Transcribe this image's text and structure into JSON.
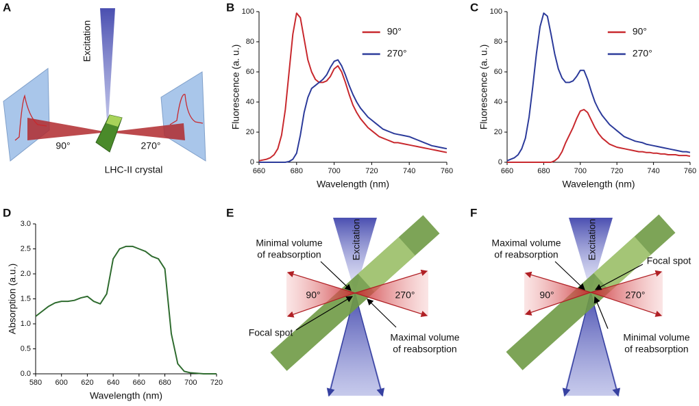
{
  "panel_labels": [
    "A",
    "B",
    "C",
    "D",
    "E",
    "F"
  ],
  "diagrams": {
    "A": {
      "excitation": "Excitation",
      "left": "90°",
      "right": "270°",
      "crystal": "LHC-II crystal"
    },
    "E": {
      "upper_left": [
        "Minimal volume",
        "of reabsorption"
      ],
      "excitation": "Excitation",
      "left": "90°",
      "right": "270°",
      "lower_left": "Focal spot",
      "lower_right": [
        "Maximal volume",
        "of reabsorption"
      ]
    },
    "F": {
      "upper_left": [
        "Maximal volume",
        "of reabsorption"
      ],
      "excitation": "Excitation",
      "upper_right": "Focal spot",
      "left": "90°",
      "right": "270°",
      "lower_right": [
        "Minimal volume",
        "of reabsorption"
      ]
    }
  },
  "chart_data": [
    {
      "type": "line",
      "xlabel": "Wavelength (nm)",
      "ylabel": "Fluorescence (a. u.)",
      "x": [
        660,
        662,
        664,
        666,
        668,
        670,
        672,
        674,
        676,
        678,
        680,
        682,
        684,
        686,
        688,
        690,
        692,
        694,
        696,
        698,
        700,
        702,
        704,
        706,
        708,
        710,
        712,
        714,
        716,
        718,
        720,
        722,
        724,
        726,
        728,
        730,
        732,
        734,
        736,
        738,
        740,
        742,
        744,
        746,
        748,
        750,
        752,
        754,
        756,
        758,
        760
      ],
      "series": [
        {
          "name": "90°",
          "color": "#c8282d",
          "values": [
            1,
            1.5,
            2,
            3,
            5,
            9,
            18,
            35,
            60,
            85,
            99,
            96,
            82,
            68,
            60,
            55,
            53,
            53,
            54,
            57,
            62,
            64,
            60,
            53,
            45,
            38,
            33,
            29,
            26,
            23,
            21,
            19,
            17,
            16,
            15,
            14,
            13,
            13,
            12.5,
            12,
            11.5,
            11,
            10.5,
            10,
            9.5,
            9,
            8.5,
            8,
            7.5,
            7,
            6.5
          ]
        },
        {
          "name": "270°",
          "color": "#2b3a9a",
          "values": [
            0,
            0,
            0,
            0,
            0,
            0,
            0,
            0,
            0.5,
            2,
            6,
            18,
            33,
            43,
            49,
            51,
            53,
            55,
            58,
            63,
            67,
            68,
            64,
            58,
            51,
            45,
            40,
            36,
            33,
            30,
            28,
            26,
            24,
            22,
            21,
            20,
            19,
            18.5,
            18,
            17.5,
            17,
            16,
            15,
            14,
            13,
            12,
            11,
            10.5,
            10,
            9.5,
            9
          ]
        }
      ],
      "xlim": [
        660,
        760
      ],
      "xticks": [
        660,
        680,
        700,
        720,
        740,
        760
      ],
      "ylim": [
        0,
        100
      ],
      "yticks": [
        0,
        20,
        40,
        60,
        80,
        100
      ],
      "legend": "upper right"
    },
    {
      "type": "line",
      "xlabel": "Wavelength (nm)",
      "ylabel": "Fluorescence (a. u.)",
      "x": [
        660,
        662,
        664,
        666,
        668,
        670,
        672,
        674,
        676,
        678,
        680,
        682,
        684,
        686,
        688,
        690,
        692,
        694,
        696,
        698,
        700,
        702,
        704,
        706,
        708,
        710,
        712,
        714,
        716,
        718,
        720,
        722,
        724,
        726,
        728,
        730,
        732,
        734,
        736,
        738,
        740,
        742,
        744,
        746,
        748,
        750,
        752,
        754,
        756,
        758,
        760
      ],
      "series": [
        {
          "name": "90°",
          "color": "#c8282d",
          "values": [
            0,
            0,
            0,
            0,
            0,
            0,
            0,
            0,
            0,
            0,
            0,
            0,
            0,
            1,
            3,
            7,
            13,
            18,
            23,
            29,
            34,
            35,
            33,
            28,
            23,
            19,
            16,
            14,
            12,
            11,
            10,
            9.5,
            9,
            8.5,
            8,
            7.5,
            7,
            7,
            6.5,
            6.5,
            6,
            6,
            5.5,
            5.5,
            5,
            5,
            5,
            4.5,
            4.5,
            4.5,
            4
          ]
        },
        {
          "name": "270°",
          "color": "#2b3a9a",
          "values": [
            1,
            2,
            3,
            5,
            9,
            16,
            30,
            50,
            72,
            90,
            99,
            97,
            85,
            72,
            62,
            56,
            53,
            53,
            54,
            57,
            61,
            61,
            55,
            47,
            40,
            35,
            31,
            28,
            25,
            23,
            21,
            19,
            17,
            16,
            15,
            14,
            13.5,
            13,
            12,
            11.5,
            11,
            10.5,
            10,
            9.5,
            9,
            8.5,
            8,
            7.5,
            7,
            7,
            6.5
          ]
        }
      ],
      "xlim": [
        660,
        760
      ],
      "xticks": [
        660,
        680,
        700,
        720,
        740,
        760
      ],
      "ylim": [
        0,
        100
      ],
      "yticks": [
        0,
        20,
        40,
        60,
        80,
        100
      ],
      "legend": "upper right"
    },
    {
      "type": "line",
      "xlabel": "Wavelength (nm)",
      "ylabel": "Absorption (a.u.)",
      "x": [
        580,
        585,
        590,
        595,
        600,
        605,
        610,
        615,
        620,
        625,
        630,
        635,
        640,
        645,
        650,
        655,
        660,
        665,
        670,
        675,
        680,
        685,
        690,
        695,
        700,
        705,
        710,
        715,
        720
      ],
      "series": [
        {
          "color": "#2e6b2e",
          "values": [
            1.15,
            1.25,
            1.35,
            1.42,
            1.45,
            1.45,
            1.47,
            1.52,
            1.55,
            1.45,
            1.4,
            1.6,
            2.3,
            2.5,
            2.55,
            2.55,
            2.5,
            2.45,
            2.35,
            2.3,
            2.1,
            0.8,
            0.2,
            0.05,
            0.02,
            0.01,
            0,
            0,
            0
          ]
        }
      ],
      "xlim": [
        580,
        720
      ],
      "xticks": [
        580,
        600,
        620,
        640,
        660,
        680,
        700,
        720
      ],
      "ylim": [
        0,
        3
      ],
      "yticks": [
        {
          "value": 0,
          "label": "0.0"
        },
        0.5,
        {
          "value": 1,
          "label": "1.0"
        },
        1.5,
        {
          "value": 2,
          "label": "2.0"
        },
        2.5,
        {
          "value": 3,
          "label": "3.0"
        }
      ]
    }
  ]
}
